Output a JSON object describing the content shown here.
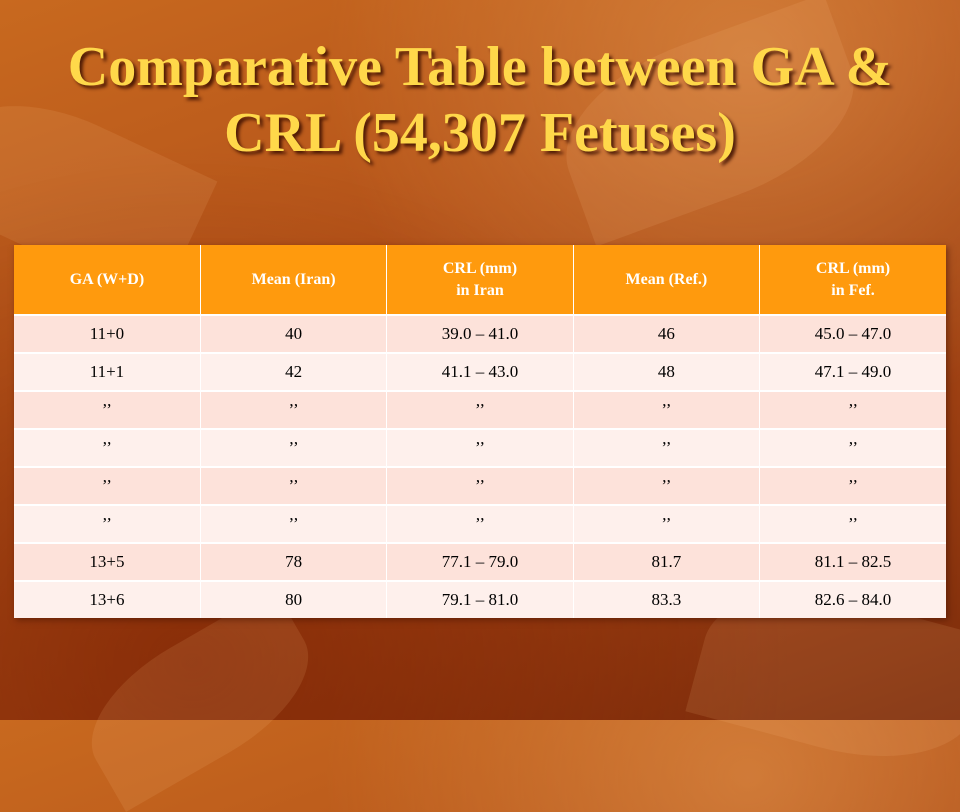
{
  "title": {
    "line1": "Comparative Table between GA &",
    "line2": "CRL (54,307 Fetuses)"
  },
  "table": {
    "headers": [
      {
        "line1": "GA (W+D)",
        "line2": ""
      },
      {
        "line1": "Mean  (Iran)",
        "line2": ""
      },
      {
        "line1": "CRL (mm)",
        "line2": "in Iran"
      },
      {
        "line1": "Mean (Ref.)",
        "line2": ""
      },
      {
        "line1": "CRL (mm)",
        "line2": "in Fef."
      }
    ],
    "rows": [
      [
        "11+0",
        "40",
        "39.0 – 41.0",
        "46",
        "45.0 – 47.0"
      ],
      [
        "11+1",
        "42",
        "41.1 – 43.0",
        "48",
        "47.1 – 49.0"
      ],
      [
        "’’",
        "’’",
        "’’",
        "’’",
        "’’"
      ],
      [
        "’’",
        "’’",
        "’’",
        "’’",
        "’’"
      ],
      [
        "’’",
        "’’",
        "’’",
        "’’",
        "’’"
      ],
      [
        "’’",
        "’’",
        "’’",
        "’’",
        "’’"
      ],
      [
        "13+5",
        "78",
        "77.1 – 79.0",
        "81.7",
        "81.1 – 82.5"
      ],
      [
        "13+6",
        "80",
        "79.1 – 81.0",
        "83.3",
        "82.6 – 84.0"
      ]
    ]
  },
  "colors": {
    "title": "#ffd84a",
    "header_bg": "#ff9a0d",
    "row_odd": "#fde2da",
    "row_even": "#fef0ec"
  }
}
